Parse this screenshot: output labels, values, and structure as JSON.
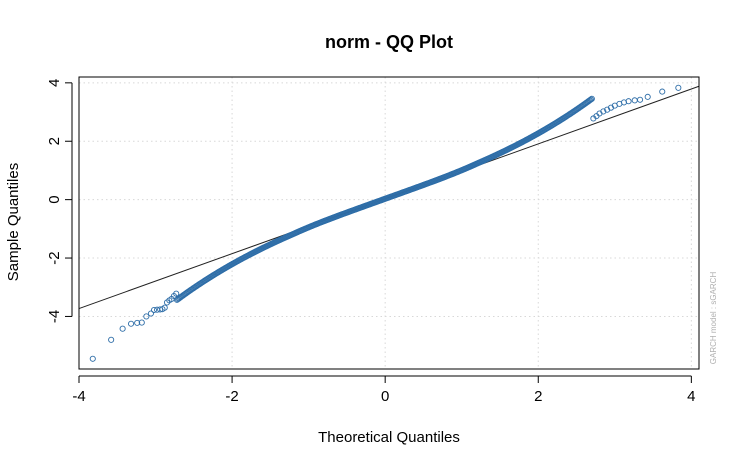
{
  "chart_data": {
    "type": "scatter",
    "title": "norm - QQ Plot",
    "xlabel": "Theoretical Quantiles",
    "ylabel": "Sample Quantiles",
    "watermark": "GARCH model : sGARCH",
    "xlim": [
      -4.0,
      4.1
    ],
    "ylim": [
      -5.8,
      4.2
    ],
    "xticks": [
      "-4",
      "-2",
      "0",
      "2",
      "4"
    ],
    "yticks": [
      "4",
      "2",
      "0",
      "-2",
      "-4"
    ],
    "grid": true,
    "point_color": "#2f6ea8",
    "reference_line": {
      "intercept": 0.03,
      "slope": 0.94
    },
    "tail_points": [
      [
        -3.82,
        -5.45
      ],
      [
        -3.58,
        -4.8
      ],
      [
        -3.43,
        -4.42
      ],
      [
        -3.32,
        -4.25
      ],
      [
        -3.24,
        -4.22
      ],
      [
        -3.18,
        -4.21
      ],
      [
        -3.12,
        -4.0
      ],
      [
        -3.06,
        -3.9
      ],
      [
        -3.02,
        -3.78
      ],
      [
        -2.98,
        -3.77
      ],
      [
        -2.94,
        -3.76
      ],
      [
        -2.91,
        -3.75
      ],
      [
        -2.88,
        -3.7
      ],
      [
        -2.85,
        -3.52
      ],
      [
        -2.82,
        -3.45
      ],
      [
        -2.79,
        -3.4
      ],
      [
        -2.76,
        -3.3
      ],
      [
        -2.73,
        -3.22
      ],
      [
        2.72,
        2.78
      ],
      [
        2.76,
        2.86
      ],
      [
        2.8,
        2.95
      ],
      [
        2.85,
        3.02
      ],
      [
        2.9,
        3.08
      ],
      [
        2.95,
        3.15
      ],
      [
        3.0,
        3.22
      ],
      [
        3.06,
        3.28
      ],
      [
        3.12,
        3.33
      ],
      [
        3.18,
        3.37
      ],
      [
        3.26,
        3.4
      ],
      [
        3.33,
        3.42
      ],
      [
        3.43,
        3.52
      ],
      [
        3.62,
        3.7
      ],
      [
        3.83,
        3.83
      ]
    ]
  }
}
